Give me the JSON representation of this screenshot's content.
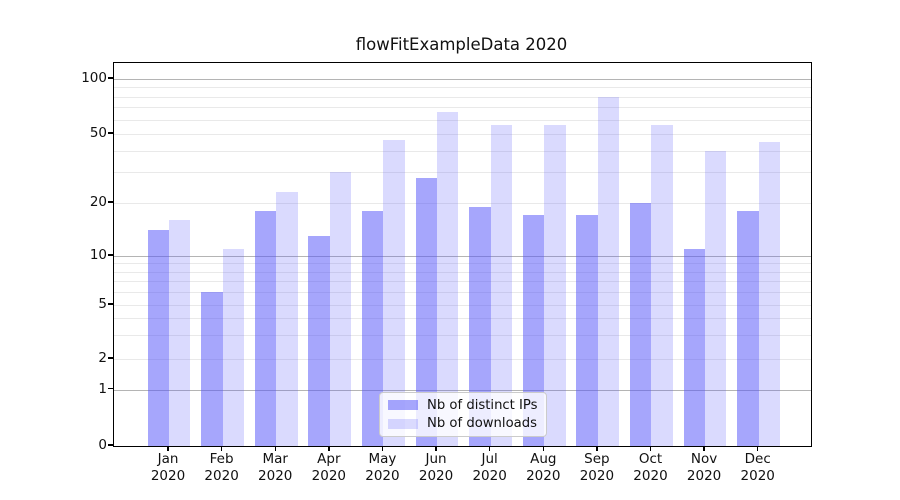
{
  "chart_data": {
    "type": "bar",
    "title": "flowFitExampleData 2020",
    "categories": [
      "Jan 2020",
      "Feb 2020",
      "Mar 2020",
      "Apr 2020",
      "May 2020",
      "Jun 2020",
      "Jul 2020",
      "Aug 2020",
      "Sep 2020",
      "Oct 2020",
      "Nov 2020",
      "Dec 2020"
    ],
    "x_tick_labels": [
      [
        "Jan",
        "2020"
      ],
      [
        "Feb",
        "2020"
      ],
      [
        "Mar",
        "2020"
      ],
      [
        "Apr",
        "2020"
      ],
      [
        "May",
        "2020"
      ],
      [
        "Jun",
        "2020"
      ],
      [
        "Jul",
        "2020"
      ],
      [
        "Aug",
        "2020"
      ],
      [
        "Sep",
        "2020"
      ],
      [
        "Oct",
        "2020"
      ],
      [
        "Nov",
        "2020"
      ],
      [
        "Dec",
        "2020"
      ]
    ],
    "series": [
      {
        "name": "Nb of distinct IPs",
        "color": "rgba(85,85,250,0.52)",
        "values": [
          14,
          6,
          18,
          13,
          18,
          28,
          19,
          17,
          17,
          20,
          11,
          18
        ]
      },
      {
        "name": "Nb of downloads",
        "color": "rgba(85,85,250,0.22)",
        "values": [
          16,
          11,
          23,
          30,
          46,
          66,
          56,
          56,
          80,
          56,
          40,
          45
        ]
      }
    ],
    "yscale": "symlog",
    "ylim": [
      0,
      123
    ],
    "yticks": [
      0,
      1,
      2,
      5,
      10,
      20,
      50,
      100
    ],
    "decade_gridlines": [
      1,
      10,
      100
    ],
    "minor_gridlines": [
      3,
      4,
      6,
      7,
      8,
      9,
      30,
      40,
      60,
      70,
      80,
      90
    ],
    "grid": "on",
    "legend_position": "lower center",
    "xlabel": "",
    "ylabel": ""
  },
  "colors": {
    "bar_ips": "rgba(85,85,250,0.52)",
    "bar_downloads": "rgba(85,85,250,0.22)",
    "decade_grid": "#b4b4b4",
    "minor_grid": "#e9e9e9",
    "axis": "#000000",
    "legend_border": "#cbcbcb"
  }
}
